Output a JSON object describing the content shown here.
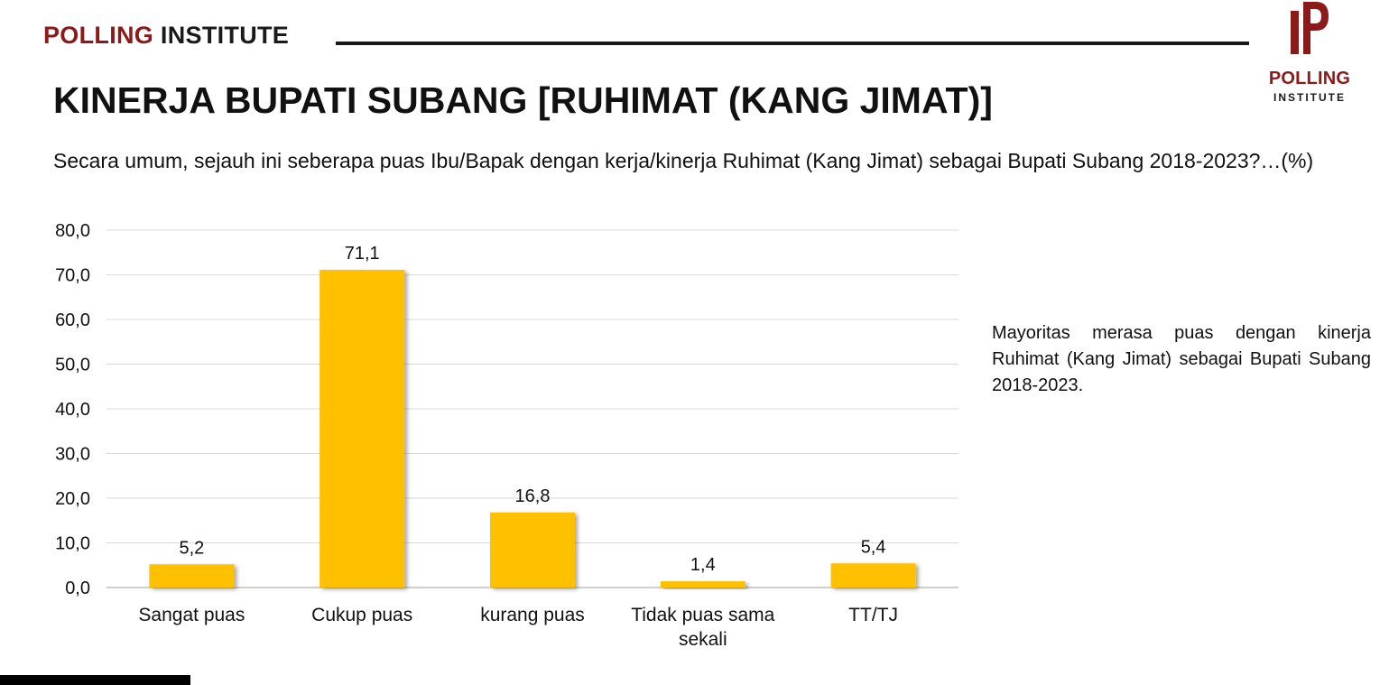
{
  "brand": {
    "part1": "POLLING",
    "part2": "INSTITUTE"
  },
  "logo": {
    "word": "POLLING",
    "sub": "INSTITUTE"
  },
  "title": "KINERJA BUPATI SUBANG [RUHIMAT (KANG JIMAT)]",
  "question": "Secara umum, sejauh ini seberapa puas Ibu/Bapak dengan kerja/kinerja Ruhimat (Kang Jimat) sebagai Bupati Subang 2018-2023?…(%)",
  "note": "Mayoritas merasa puas dengan kinerja Ruhimat (Kang Jimat) sebagai Bupati Subang 2018-2023.",
  "colors": {
    "accent": "#8b1a1a",
    "bar": "#ffc000",
    "grid": "#d9d9d9"
  },
  "chart_data": {
    "type": "bar",
    "categories": [
      [
        "Sangat puas"
      ],
      [
        "Cukup puas"
      ],
      [
        "kurang puas"
      ],
      [
        "Tidak puas sama",
        "sekali"
      ],
      [
        "TT/TJ"
      ]
    ],
    "values": [
      5.2,
      71.1,
      16.8,
      1.4,
      5.4
    ],
    "value_labels": [
      "5,2",
      "71,1",
      "16,8",
      "1,4",
      "5,4"
    ],
    "yticks": [
      0,
      10,
      20,
      30,
      40,
      50,
      60,
      70,
      80
    ],
    "ytick_labels": [
      "0,0",
      "10,0",
      "20,0",
      "30,0",
      "40,0",
      "50,0",
      "60,0",
      "70,0",
      "80,0"
    ],
    "ylim": [
      0,
      80
    ],
    "grid": true,
    "bar_color": "#ffc000"
  }
}
